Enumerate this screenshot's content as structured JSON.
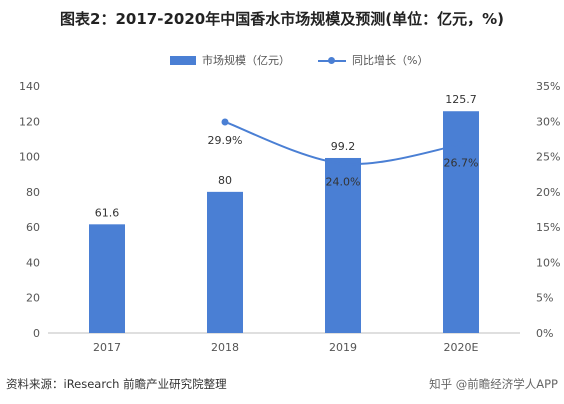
{
  "title": "图表2：2017-2020年中国香水市场规模及预测(单位：亿元，%)",
  "source": "资料来源：iResearch 前瞻产业研究院整理",
  "credit": "知乎 @前瞻经济学人APP",
  "colors": {
    "bar": "#4a7fd4",
    "line": "#4a7fd4"
  },
  "chart_data": {
    "type": "bar",
    "categories": [
      "2017",
      "2018",
      "2019",
      "2020E"
    ],
    "series": [
      {
        "name": "市场规模（亿元）",
        "type": "bar",
        "axis": "left",
        "values": [
          61.6,
          80,
          99.2,
          125.7
        ],
        "labels": [
          "61.6",
          "80",
          "99.2",
          "125.7"
        ]
      },
      {
        "name": "同比增长（%）",
        "type": "line",
        "axis": "right",
        "values": [
          null,
          29.9,
          24.0,
          26.7
        ],
        "labels": [
          "",
          "29.9%",
          "24.0%",
          "26.7%"
        ]
      }
    ],
    "left_axis": {
      "min": 0,
      "max": 140,
      "ticks": [
        "0",
        "20",
        "40",
        "60",
        "80",
        "100",
        "120",
        "140"
      ]
    },
    "right_axis": {
      "min": 0,
      "max": 35,
      "ticks": [
        "0%",
        "5%",
        "10%",
        "15%",
        "20%",
        "25%",
        "30%",
        "35%"
      ]
    },
    "grid": false,
    "legend_position": "top"
  }
}
